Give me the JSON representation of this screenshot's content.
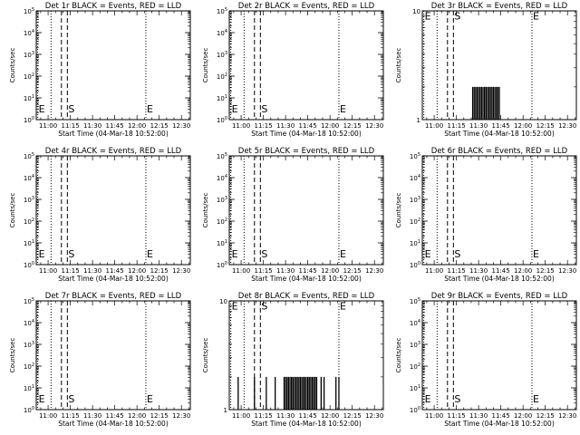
{
  "chart_data": [
    {
      "type": "bar",
      "title": "Det 1r BLACK = Events, RED = LLD",
      "xlabel": "Start Time (04-Mar-18 10:52:00)",
      "ylabel": "Counts/sec",
      "xlim": [
        "10:52",
        "12:36"
      ],
      "ylim": [
        1,
        100000
      ],
      "y_log": true,
      "x_ticks": [
        "11:00",
        "11:15",
        "11:30",
        "11:45",
        "12:00",
        "12:15",
        "12:30"
      ],
      "y_ticks": [
        "10^0",
        "10^1",
        "10^2",
        "10^3",
        "10^4",
        "10^5"
      ],
      "markers": [
        {
          "label": "E",
          "time": "10:53",
          "style": "dotted",
          "level": "10^0.5"
        },
        {
          "label": "E",
          "time": "11:02",
          "style": "dotted",
          "level": ""
        },
        {
          "label": "S",
          "time": "11:09",
          "style": "dashed",
          "level": ""
        },
        {
          "label": "S",
          "time": "11:13",
          "style": "dashed",
          "level": "10^0.5"
        },
        {
          "label": "E",
          "time": "12:06",
          "style": "dotted",
          "level": "10^0.5"
        }
      ],
      "series": []
    },
    {
      "type": "bar",
      "title": "Det 2r BLACK = Events, RED = LLD",
      "xlabel": "Start Time (04-Mar-18 10:52:00)",
      "ylabel": "Counts/sec",
      "xlim": [
        "10:52",
        "12:36"
      ],
      "ylim": [
        1,
        100000
      ],
      "y_log": true,
      "x_ticks": [
        "11:00",
        "11:15",
        "11:30",
        "11:45",
        "12:00",
        "12:15",
        "12:30"
      ],
      "y_ticks": [
        "10^0",
        "10^1",
        "10^2",
        "10^3",
        "10^4",
        "10^5"
      ],
      "markers": [
        {
          "label": "E",
          "time": "10:53",
          "style": "dotted",
          "level": "10^0.5"
        },
        {
          "label": "E",
          "time": "11:02",
          "style": "dotted",
          "level": ""
        },
        {
          "label": "S",
          "time": "11:09",
          "style": "dashed",
          "level": ""
        },
        {
          "label": "S",
          "time": "11:13",
          "style": "dashed",
          "level": "10^0.5"
        },
        {
          "label": "E",
          "time": "12:06",
          "style": "dotted",
          "level": "10^0.5"
        }
      ],
      "series": []
    },
    {
      "type": "bar",
      "title": "Det 3r BLACK = Events, RED = LLD",
      "xlabel": "Start Time (04-Mar-18 10:52:00)",
      "ylabel": "Counts/sec",
      "xlim": [
        "10:52",
        "12:36"
      ],
      "ylim": [
        1,
        10
      ],
      "y_log": true,
      "x_ticks": [
        "11:00",
        "11:15",
        "11:30",
        "11:45",
        "12:00",
        "12:15",
        "12:30"
      ],
      "y_ticks": [
        "1",
        "10"
      ],
      "markers": [
        {
          "label": "E",
          "time": "10:53",
          "style": "dotted",
          "level": "9"
        },
        {
          "label": "E",
          "time": "11:02",
          "style": "dotted",
          "level": ""
        },
        {
          "label": "S",
          "time": "11:09",
          "style": "dashed",
          "level": ""
        },
        {
          "label": "S",
          "time": "11:13",
          "style": "dashed",
          "level": "9"
        },
        {
          "label": "E",
          "time": "12:06",
          "style": "dotted",
          "level": "9"
        }
      ],
      "series": [
        {
          "values": [
            [
              "11:26",
              2
            ],
            [
              "11:27",
              2
            ],
            [
              "11:28",
              2
            ],
            [
              "11:29",
              2
            ],
            [
              "11:30",
              2
            ],
            [
              "11:31",
              2
            ],
            [
              "11:32",
              2
            ],
            [
              "11:33",
              2
            ],
            [
              "11:34",
              2
            ],
            [
              "11:35",
              2
            ],
            [
              "11:36",
              2
            ],
            [
              "11:37",
              2
            ],
            [
              "11:38",
              2
            ],
            [
              "11:39",
              2
            ],
            [
              "11:40",
              2
            ],
            [
              "11:41",
              2
            ],
            [
              "11:42",
              2
            ],
            [
              "11:43",
              2
            ],
            [
              "11:44",
              2
            ]
          ]
        }
      ]
    },
    {
      "type": "bar",
      "title": "Det 4r BLACK = Events, RED = LLD",
      "xlabel": "Start Time (04-Mar-18 10:52:00)",
      "ylabel": "Counts/sec",
      "xlim": [
        "10:52",
        "12:36"
      ],
      "ylim": [
        1,
        100000
      ],
      "y_log": true,
      "x_ticks": [
        "11:00",
        "11:15",
        "11:30",
        "11:45",
        "12:00",
        "12:15",
        "12:30"
      ],
      "y_ticks": [
        "10^0",
        "10^1",
        "10^2",
        "10^3",
        "10^4",
        "10^5"
      ],
      "markers": [
        {
          "label": "E",
          "time": "10:53",
          "style": "dotted",
          "level": "10^0.5"
        },
        {
          "label": "E",
          "time": "11:02",
          "style": "dotted",
          "level": ""
        },
        {
          "label": "S",
          "time": "11:09",
          "style": "dashed",
          "level": ""
        },
        {
          "label": "S",
          "time": "11:13",
          "style": "dashed",
          "level": "10^0.5"
        },
        {
          "label": "E",
          "time": "12:06",
          "style": "dotted",
          "level": "10^0.5"
        }
      ],
      "series": []
    },
    {
      "type": "bar",
      "title": "Det 5r BLACK = Events, RED = LLD",
      "xlabel": "Start Time (04-Mar-18 10:52:00)",
      "ylabel": "Counts/sec",
      "xlim": [
        "10:52",
        "12:36"
      ],
      "ylim": [
        1,
        100000
      ],
      "y_log": true,
      "x_ticks": [
        "11:00",
        "11:15",
        "11:30",
        "11:45",
        "12:00",
        "12:15",
        "12:30"
      ],
      "y_ticks": [
        "10^0",
        "10^1",
        "10^2",
        "10^3",
        "10^4",
        "10^5"
      ],
      "markers": [
        {
          "label": "E",
          "time": "10:53",
          "style": "dotted",
          "level": "10^0.5"
        },
        {
          "label": "E",
          "time": "11:02",
          "style": "dotted",
          "level": ""
        },
        {
          "label": "S",
          "time": "11:09",
          "style": "dashed",
          "level": ""
        },
        {
          "label": "S",
          "time": "11:13",
          "style": "dashed",
          "level": "10^0.5"
        },
        {
          "label": "E",
          "time": "12:06",
          "style": "dotted",
          "level": "10^0.5"
        }
      ],
      "series": []
    },
    {
      "type": "bar",
      "title": "Det 6r BLACK = Events, RED = LLD",
      "xlabel": "Start Time (04-Mar-18 10:52:00)",
      "ylabel": "Counts/sec",
      "xlim": [
        "10:52",
        "12:36"
      ],
      "ylim": [
        1,
        100000
      ],
      "y_log": true,
      "x_ticks": [
        "11:00",
        "11:15",
        "11:30",
        "11:45",
        "12:00",
        "12:15",
        "12:30"
      ],
      "y_ticks": [
        "10^0",
        "10^1",
        "10^2",
        "10^3",
        "10^4",
        "10^5"
      ],
      "markers": [
        {
          "label": "E",
          "time": "10:53",
          "style": "dotted",
          "level": "10^0.5"
        },
        {
          "label": "E",
          "time": "11:02",
          "style": "dotted",
          "level": ""
        },
        {
          "label": "S",
          "time": "11:09",
          "style": "dashed",
          "level": ""
        },
        {
          "label": "S",
          "time": "11:13",
          "style": "dashed",
          "level": "10^0.5"
        },
        {
          "label": "E",
          "time": "12:06",
          "style": "dotted",
          "level": "10^0.5"
        }
      ],
      "series": []
    },
    {
      "type": "bar",
      "title": "Det 7r BLACK = Events, RED = LLD",
      "xlabel": "Start Time (04-Mar-18 10:52:00)",
      "ylabel": "Counts/sec",
      "xlim": [
        "10:52",
        "12:36"
      ],
      "ylim": [
        1,
        100000
      ],
      "y_log": true,
      "x_ticks": [
        "11:00",
        "11:15",
        "11:30",
        "11:45",
        "12:00",
        "12:15",
        "12:30"
      ],
      "y_ticks": [
        "10^0",
        "10^1",
        "10^2",
        "10^3",
        "10^4",
        "10^5"
      ],
      "markers": [
        {
          "label": "E",
          "time": "10:53",
          "style": "dotted",
          "level": "10^0.5"
        },
        {
          "label": "E",
          "time": "11:02",
          "style": "dotted",
          "level": ""
        },
        {
          "label": "S",
          "time": "11:09",
          "style": "dashed",
          "level": ""
        },
        {
          "label": "S",
          "time": "11:13",
          "style": "dashed",
          "level": "10^0.5"
        },
        {
          "label": "E",
          "time": "12:06",
          "style": "dotted",
          "level": "10^0.5"
        }
      ],
      "series": []
    },
    {
      "type": "bar",
      "title": "Det 8r BLACK = Events, RED = LLD",
      "xlabel": "Start Time (04-Mar-18 10:52:00)",
      "ylabel": "Counts/sec",
      "xlim": [
        "10:52",
        "12:36"
      ],
      "ylim": [
        1,
        10
      ],
      "y_log": true,
      "x_ticks": [
        "11:00",
        "11:15",
        "11:30",
        "11:45",
        "12:00",
        "12:15",
        "12:30"
      ],
      "y_ticks": [
        "1",
        "10"
      ],
      "markers": [
        {
          "label": "E",
          "time": "10:53",
          "style": "dotted",
          "level": "9"
        },
        {
          "label": "E",
          "time": "11:02",
          "style": "dotted",
          "level": ""
        },
        {
          "label": "S",
          "time": "11:09",
          "style": "dashed",
          "level": ""
        },
        {
          "label": "S",
          "time": "11:13",
          "style": "dashed",
          "level": "9"
        },
        {
          "label": "E",
          "time": "12:06",
          "style": "dotted",
          "level": "9"
        }
      ],
      "series": [
        {
          "values": [
            [
              "10:58",
              2
            ],
            [
              "11:09",
              2
            ],
            [
              "11:17",
              2
            ],
            [
              "11:23",
              2
            ],
            [
              "11:29",
              2
            ],
            [
              "11:30",
              2
            ],
            [
              "11:31",
              2
            ],
            [
              "11:32",
              2
            ],
            [
              "11:33",
              2
            ],
            [
              "11:34",
              2
            ],
            [
              "11:35",
              2
            ],
            [
              "11:36",
              2
            ],
            [
              "11:37",
              2
            ],
            [
              "11:38",
              2
            ],
            [
              "11:39",
              2
            ],
            [
              "11:40",
              2
            ],
            [
              "11:41",
              2
            ],
            [
              "11:42",
              2
            ],
            [
              "11:43",
              2
            ],
            [
              "11:44",
              2
            ],
            [
              "11:45",
              2
            ],
            [
              "11:46",
              2
            ],
            [
              "11:47",
              2
            ],
            [
              "11:48",
              2
            ],
            [
              "11:49",
              2
            ],
            [
              "11:50",
              2
            ],
            [
              "11:51",
              2
            ],
            [
              "11:54",
              2
            ],
            [
              "11:56",
              2
            ],
            [
              "12:04",
              2
            ],
            [
              "12:06",
              2
            ]
          ]
        }
      ]
    },
    {
      "type": "bar",
      "title": "Det 9r BLACK = Events, RED = LLD",
      "xlabel": "Start Time (04-Mar-18 10:52:00)",
      "ylabel": "Counts/sec",
      "xlim": [
        "10:52",
        "12:36"
      ],
      "ylim": [
        1,
        100000
      ],
      "y_log": true,
      "x_ticks": [
        "11:00",
        "11:15",
        "11:30",
        "11:45",
        "12:00",
        "12:15",
        "12:30"
      ],
      "y_ticks": [
        "10^0",
        "10^1",
        "10^2",
        "10^3",
        "10^4",
        "10^5"
      ],
      "markers": [
        {
          "label": "E",
          "time": "10:53",
          "style": "dotted",
          "level": "10^0.5"
        },
        {
          "label": "E",
          "time": "11:02",
          "style": "dotted",
          "level": ""
        },
        {
          "label": "S",
          "time": "11:09",
          "style": "dashed",
          "level": ""
        },
        {
          "label": "S",
          "time": "11:13",
          "style": "dashed",
          "level": "10^0.5"
        },
        {
          "label": "E",
          "time": "12:06",
          "style": "dotted",
          "level": "10^0.5"
        }
      ],
      "series": []
    }
  ]
}
